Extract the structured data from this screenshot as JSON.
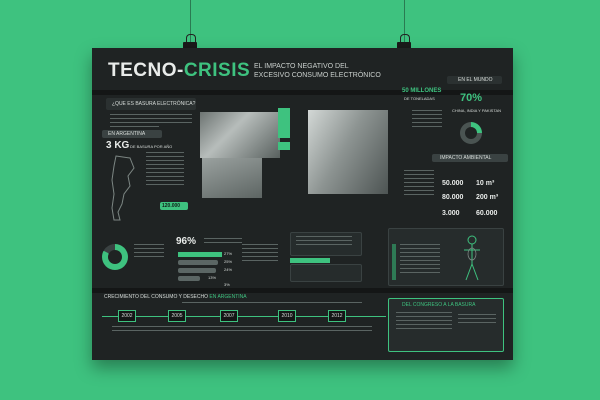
{
  "poster": {
    "title_part1": "TECNO-",
    "title_part2": "CRISIS",
    "subtitle_line1": "EL IMPACTO NEGATIVO DEL",
    "subtitle_line2": "EXCESIVO CONSUMO ELECTRÓNICO",
    "q_basura": "¿QUE ES BASURA ELECTRÓNICA?",
    "argentina_h": "EN ARGENTINA",
    "kg_value": "3 KG",
    "kg_note": "DE BASURA POR AÑO",
    "stat_120": "120.000",
    "mundo_h": "EN EL MUNDO",
    "millones": "50 MILLONES",
    "millones_note": "DE TONELADAS",
    "pct70": "70%",
    "pct70_note": "CHINA, INDIA Y PAKISTAN",
    "impacto_h": "IMPACTO AMBIENTAL",
    "n50000": "50.000",
    "n10m": "10 m³",
    "n80000": "80.000",
    "n200m": "200 m³",
    "n3000": "3.000",
    "n60000": "60.000",
    "pct96": "96%",
    "pct_list": [
      "27%",
      "25%",
      "24%",
      "13%",
      "3%"
    ],
    "crecimiento_h1": "CRECIMIENTO DEL CONSUMO Y DESECHO ",
    "crecimiento_h2": "EN ARGENTINA",
    "years": [
      "2002",
      "2005",
      "2007",
      "2010",
      "2012"
    ],
    "congreso_h": "DEL CONGRESO A LA BASURA",
    "colors": {
      "accent": "#3ec27f",
      "panel": "#1f2323",
      "background": "#3ec27f"
    }
  }
}
